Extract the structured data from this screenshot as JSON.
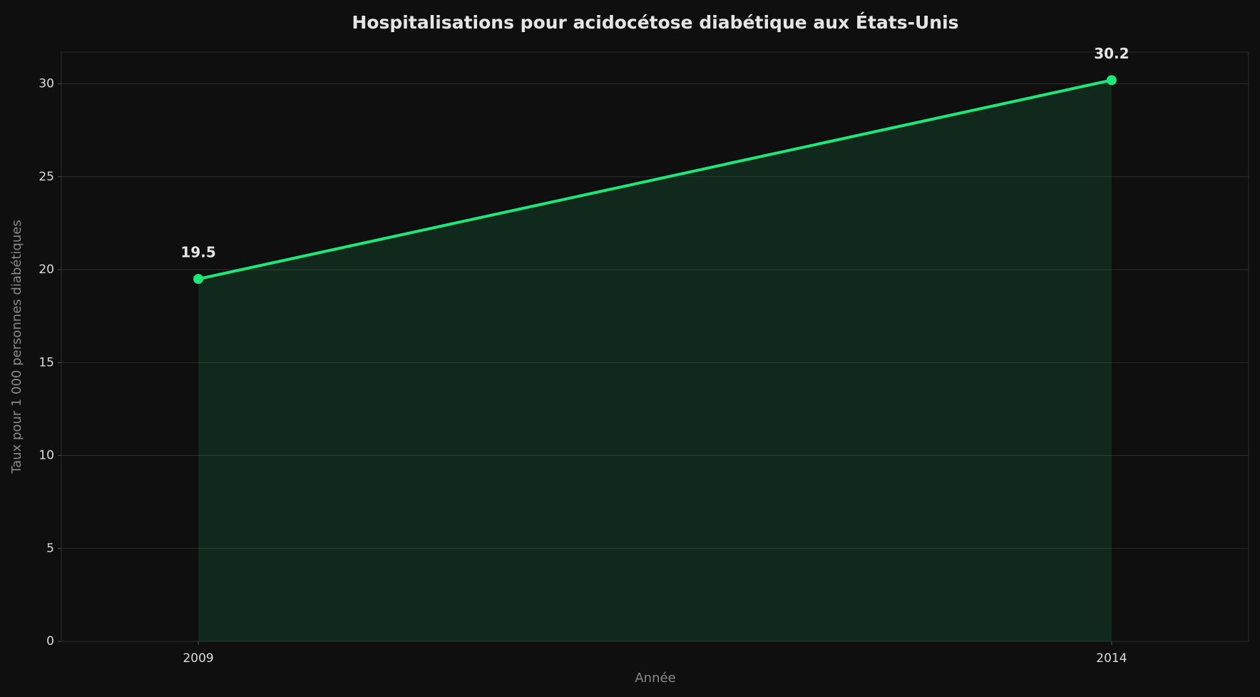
{
  "chart_data": {
    "type": "line",
    "title": "Hospitalisations pour acidocétose diabétique aux États-Unis",
    "x_label": "Année",
    "y_label": "Taux pour 1 000 personnes diabétiques",
    "x": [
      2009,
      2014
    ],
    "series": [
      {
        "color": "#1de97a",
        "values": [
          19.5,
          30.2
        ]
      }
    ],
    "xlim": [
      2008.25,
      2014.75
    ],
    "xticks": [
      2009,
      2014
    ],
    "ylim": [
      0,
      31.71
    ],
    "yticks": [
      0,
      5,
      10,
      15,
      20,
      25,
      30
    ],
    "grid": true,
    "fill_area": true,
    "data_labels": true
  }
}
